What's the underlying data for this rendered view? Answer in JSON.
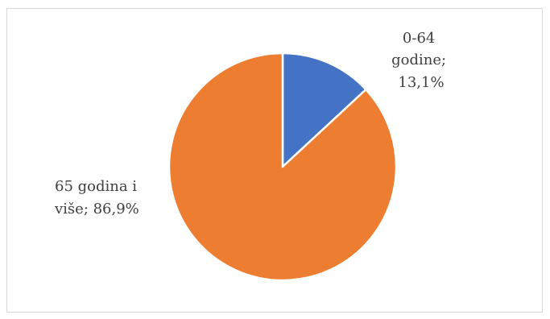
{
  "chart_data": {
    "type": "pie",
    "slices": [
      {
        "label": "0-64 godine",
        "value": 13.1,
        "data_label": [
          "0-64",
          "godine;",
          "13,1%"
        ],
        "color": "#4472c4"
      },
      {
        "label": "65 godina i više",
        "value": 86.9,
        "data_label": [
          "65 godina i",
          "više; 86,9%"
        ],
        "color": "#ed7d31"
      }
    ],
    "start_angle_deg": 0,
    "direction": "clockwise",
    "slice_border_color": "#ffffff"
  }
}
